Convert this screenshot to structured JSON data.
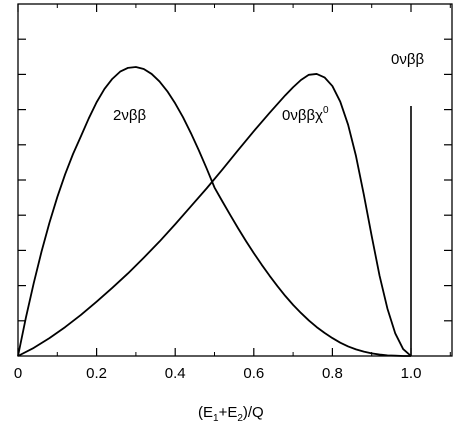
{
  "chart_data": {
    "type": "line",
    "title": "",
    "xlabel": {
      "parts": [
        "(E",
        "1",
        "+E",
        "2",
        ")/Q"
      ]
    },
    "ylabel": "",
    "xlim": [
      0,
      1.1
    ],
    "ylim": [
      0,
      1
    ],
    "x_ticks": [
      0,
      0.2,
      0.4,
      0.6,
      0.8,
      1.0
    ],
    "x_tick_labels": [
      "0",
      "0.2",
      "0.4",
      "0.6",
      "0.8",
      "1.0"
    ],
    "y_tick_labels": "none",
    "grid": false,
    "legend": "none",
    "series": [
      {
        "label_parts": [
          "2νββ"
        ],
        "points": [
          [
            0,
            0
          ],
          [
            0.02,
            0.132
          ],
          [
            0.04,
            0.252
          ],
          [
            0.06,
            0.362
          ],
          [
            0.08,
            0.461
          ],
          [
            0.1,
            0.55
          ],
          [
            0.12,
            0.629
          ],
          [
            0.14,
            0.699
          ],
          [
            0.16,
            0.76
          ],
          [
            0.18,
            0.822
          ],
          [
            0.2,
            0.878
          ],
          [
            0.22,
            0.924
          ],
          [
            0.24,
            0.959
          ],
          [
            0.26,
            0.984
          ],
          [
            0.28,
            0.997
          ],
          [
            0.3,
            1.0
          ],
          [
            0.32,
            0.993
          ],
          [
            0.34,
            0.976
          ],
          [
            0.36,
            0.95
          ],
          [
            0.38,
            0.916
          ],
          [
            0.4,
            0.874
          ],
          [
            0.42,
            0.826
          ],
          [
            0.44,
            0.771
          ],
          [
            0.46,
            0.712
          ],
          [
            0.48,
            0.649
          ],
          [
            0.5,
            0.583
          ],
          [
            0.52,
            0.535
          ],
          [
            0.54,
            0.488
          ],
          [
            0.56,
            0.442
          ],
          [
            0.58,
            0.398
          ],
          [
            0.6,
            0.356
          ],
          [
            0.62,
            0.316
          ],
          [
            0.64,
            0.278
          ],
          [
            0.66,
            0.242
          ],
          [
            0.68,
            0.208
          ],
          [
            0.7,
            0.177
          ],
          [
            0.72,
            0.149
          ],
          [
            0.74,
            0.123
          ],
          [
            0.76,
            0.1
          ],
          [
            0.78,
            0.08
          ],
          [
            0.8,
            0.062
          ],
          [
            0.82,
            0.046
          ],
          [
            0.84,
            0.033
          ],
          [
            0.86,
            0.023
          ],
          [
            0.88,
            0.015
          ],
          [
            0.9,
            0.009
          ],
          [
            0.92,
            0.005
          ],
          [
            0.94,
            0.002
          ],
          [
            0.96,
            0.001
          ],
          [
            0.98,
            0.0
          ],
          [
            1.0,
            0.0
          ]
        ]
      },
      {
        "label_parts": [
          "0νββχ",
          "0"
        ],
        "points": [
          [
            0,
            0
          ],
          [
            0.04,
            0.028
          ],
          [
            0.08,
            0.062
          ],
          [
            0.12,
            0.1
          ],
          [
            0.16,
            0.142
          ],
          [
            0.2,
            0.188
          ],
          [
            0.24,
            0.236
          ],
          [
            0.28,
            0.286
          ],
          [
            0.32,
            0.34
          ],
          [
            0.36,
            0.396
          ],
          [
            0.4,
            0.456
          ],
          [
            0.44,
            0.518
          ],
          [
            0.48,
            0.58
          ],
          [
            0.52,
            0.645
          ],
          [
            0.56,
            0.712
          ],
          [
            0.6,
            0.778
          ],
          [
            0.64,
            0.841
          ],
          [
            0.68,
            0.902
          ],
          [
            0.7,
            0.93
          ],
          [
            0.72,
            0.955
          ],
          [
            0.74,
            0.973
          ],
          [
            0.76,
            0.976
          ],
          [
            0.78,
            0.964
          ],
          [
            0.8,
            0.934
          ],
          [
            0.82,
            0.88
          ],
          [
            0.84,
            0.8
          ],
          [
            0.86,
            0.692
          ],
          [
            0.88,
            0.558
          ],
          [
            0.9,
            0.415
          ],
          [
            0.92,
            0.278
          ],
          [
            0.94,
            0.164
          ],
          [
            0.96,
            0.078
          ],
          [
            0.98,
            0.024
          ],
          [
            1.0,
            0.0
          ]
        ]
      },
      {
        "label_parts": [
          "0νββ"
        ],
        "points": [
          [
            1.0,
            0
          ],
          [
            1.0,
            0.865
          ]
        ]
      }
    ]
  }
}
